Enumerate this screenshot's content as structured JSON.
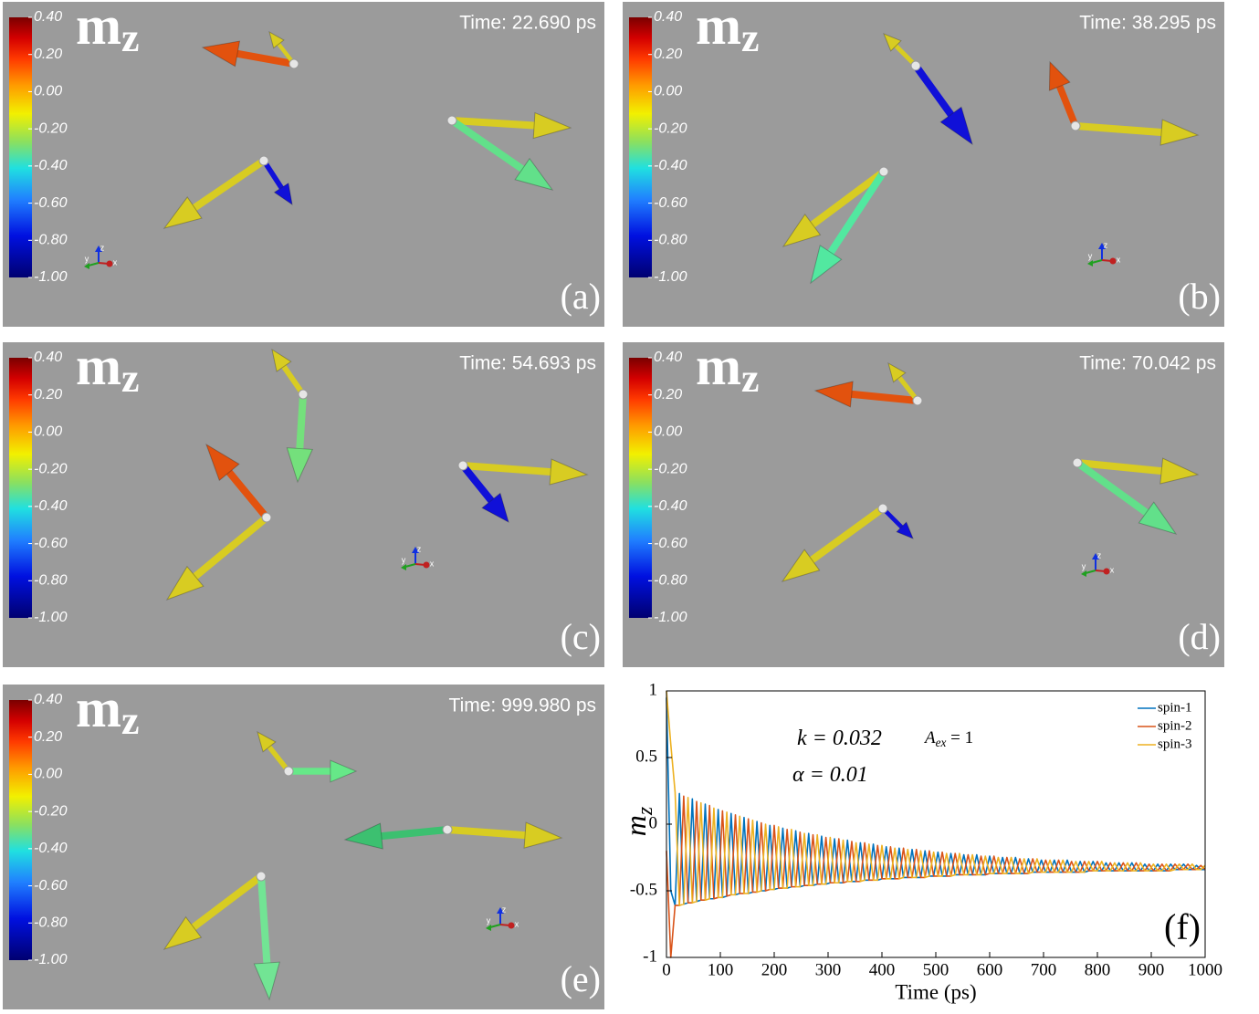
{
  "panels": [
    {
      "label": "(a)",
      "time": "Time: 22.690 ps",
      "quantity": "m",
      "quantity_sub": "z",
      "colorbar": {
        "lim": [
          -1.0,
          0.4
        ],
        "ticks": [
          {
            "value": 0.4,
            "label": "0.40"
          },
          {
            "value": 0.2,
            "label": "0.20"
          },
          {
            "value": 0,
            "label": "0.00"
          },
          {
            "value": -0.2,
            "label": "-0.20"
          },
          {
            "value": -0.4,
            "label": "-0.40"
          },
          {
            "value": -0.6,
            "label": "-0.60"
          },
          {
            "value": -0.8,
            "label": "-0.80"
          },
          {
            "value": -1.0,
            "label": "-1.00"
          }
        ]
      }
    },
    {
      "label": "(b)",
      "time": "Time: 38.295 ps",
      "quantity": "m",
      "quantity_sub": "z",
      "colorbar": {
        "lim": [
          -1.0,
          0.4
        ],
        "ticks": [
          {
            "value": 0.4,
            "label": "0.40"
          },
          {
            "value": 0.2,
            "label": "0.20"
          },
          {
            "value": 0,
            "label": "0.00"
          },
          {
            "value": -0.2,
            "label": "-0.20"
          },
          {
            "value": -0.4,
            "label": "-0.40"
          },
          {
            "value": -0.6,
            "label": "-0.60"
          },
          {
            "value": -0.8,
            "label": "-0.80"
          },
          {
            "value": -1.0,
            "label": "-1.00"
          }
        ]
      }
    },
    {
      "label": "(c)",
      "time": "Time: 54.693 ps",
      "quantity": "m",
      "quantity_sub": "z",
      "colorbar": {
        "lim": [
          -1.0,
          0.4
        ],
        "ticks": [
          {
            "value": 0.4,
            "label": "0.40"
          },
          {
            "value": 0.2,
            "label": "0.20"
          },
          {
            "value": 0,
            "label": "0.00"
          },
          {
            "value": -0.2,
            "label": "-0.20"
          },
          {
            "value": -0.4,
            "label": "-0.40"
          },
          {
            "value": -0.6,
            "label": "-0.60"
          },
          {
            "value": -0.8,
            "label": "-0.80"
          },
          {
            "value": -1.0,
            "label": "-1.00"
          }
        ]
      }
    },
    {
      "label": "(d)",
      "time": "Time: 70.042 ps",
      "quantity": "m",
      "quantity_sub": "z",
      "colorbar": {
        "lim": [
          -1.0,
          0.4
        ],
        "ticks": [
          {
            "value": 0.4,
            "label": "0.40"
          },
          {
            "value": 0.2,
            "label": "0.20"
          },
          {
            "value": 0,
            "label": "0.00"
          },
          {
            "value": -0.2,
            "label": "-0.20"
          },
          {
            "value": -0.4,
            "label": "-0.40"
          },
          {
            "value": -0.6,
            "label": "-0.60"
          },
          {
            "value": -0.8,
            "label": "-0.80"
          },
          {
            "value": -1.0,
            "label": "-1.00"
          }
        ]
      }
    },
    {
      "label": "(e)",
      "time": "Time: 999.980 ps",
      "quantity": "m",
      "quantity_sub": "z",
      "colorbar": {
        "lim": [
          -1.0,
          0.4
        ],
        "ticks": [
          {
            "value": 0.4,
            "label": "0.40"
          },
          {
            "value": 0.2,
            "label": "0.20"
          },
          {
            "value": 0,
            "label": "0.00"
          },
          {
            "value": -0.2,
            "label": "-0.20"
          },
          {
            "value": -0.4,
            "label": "-0.40"
          },
          {
            "value": -0.6,
            "label": "-0.60"
          },
          {
            "value": -0.8,
            "label": "-0.80"
          },
          {
            "value": -1.0,
            "label": "-1.00"
          }
        ]
      }
    }
  ],
  "triad_labels": [
    "y",
    "z",
    "x"
  ],
  "chart_data": {
    "type": "line",
    "panel_label": "(f)",
    "xlabel": "Time (ps)",
    "ylabel": "m",
    "ylabel_sub": "z",
    "annotations": [
      {
        "text": "k = 0.032"
      },
      {
        "text": "α = 0.01"
      },
      {
        "text": "A",
        "sub": "ex",
        "rest": " = 1"
      }
    ],
    "xlim": [
      0,
      1000
    ],
    "ylim": [
      -1,
      1
    ],
    "xticks": [
      0,
      100,
      200,
      300,
      400,
      500,
      600,
      700,
      800,
      900,
      1000
    ],
    "yticks": [
      1,
      0.5,
      0,
      -0.5,
      -1
    ],
    "x": [
      0,
      8,
      16,
      24,
      32,
      40,
      48,
      56,
      64,
      72,
      80,
      88,
      96,
      104,
      112,
      120,
      128,
      136,
      144,
      152,
      160,
      168,
      176,
      184,
      192,
      200,
      208,
      216,
      224,
      232,
      240,
      248,
      256,
      264,
      272,
      280,
      288,
      296,
      304,
      312,
      320,
      328,
      336,
      344,
      352,
      360,
      368,
      376,
      384,
      392,
      400,
      408,
      416,
      424,
      432,
      440,
      448,
      456,
      464,
      472,
      480,
      488,
      496,
      504,
      512,
      520,
      528,
      536,
      544,
      552,
      560,
      568,
      576,
      584,
      592,
      600,
      608,
      616,
      624,
      632,
      640,
      648,
      656,
      664,
      672,
      680,
      688,
      696,
      704,
      712,
      720,
      728,
      736,
      744,
      752,
      760,
      768,
      776,
      784,
      792,
      800,
      808,
      816,
      824,
      832,
      840,
      848,
      856,
      864,
      872,
      880,
      888,
      896,
      904,
      912,
      920,
      928,
      936,
      944,
      952,
      960,
      968,
      976,
      984,
      992,
      1000
    ],
    "series": [
      {
        "name": "spin-1",
        "color": "#0072bd",
        "values": [
          0.95,
          -0.5,
          -0.61,
          0.23,
          -0.6,
          -0.59,
          0.19,
          -0.58,
          -0.57,
          0.15,
          -0.56,
          -0.56,
          0.11,
          -0.55,
          -0.54,
          0.08,
          -0.53,
          -0.52,
          0.05,
          -0.52,
          -0.51,
          0.02,
          -0.5,
          -0.5,
          -0.01,
          -0.49,
          -0.48,
          -0.03,
          -0.48,
          -0.47,
          -0.05,
          -0.47,
          -0.46,
          -0.07,
          -0.46,
          -0.45,
          -0.09,
          -0.45,
          -0.44,
          -0.11,
          -0.44,
          -0.44,
          -0.12,
          -0.43,
          -0.43,
          -0.14,
          -0.42,
          -0.42,
          -0.15,
          -0.42,
          -0.41,
          -0.17,
          -0.41,
          -0.41,
          -0.18,
          -0.4,
          -0.4,
          -0.19,
          -0.4,
          -0.4,
          -0.2,
          -0.39,
          -0.39,
          -0.21,
          -0.39,
          -0.39,
          -0.22,
          -0.38,
          -0.38,
          -0.23,
          -0.38,
          -0.38,
          -0.23,
          -0.38,
          -0.38,
          -0.24,
          -0.37,
          -0.37,
          -0.25,
          -0.37,
          -0.37,
          -0.25,
          -0.37,
          -0.37,
          -0.26,
          -0.36,
          -0.36,
          -0.27,
          -0.36,
          -0.36,
          -0.27,
          -0.36,
          -0.36,
          -0.27,
          -0.36,
          -0.36,
          -0.28,
          -0.36,
          -0.35,
          -0.28,
          -0.35,
          -0.35,
          -0.29,
          -0.35,
          -0.35,
          -0.29,
          -0.35,
          -0.35,
          -0.29,
          -0.35,
          -0.35,
          -0.3,
          -0.35,
          -0.35,
          -0.3,
          -0.35,
          -0.35,
          -0.3,
          -0.34,
          -0.34,
          -0.3,
          -0.34,
          -0.34,
          -0.31,
          -0.34,
          -0.34
        ]
      },
      {
        "name": "spin-2",
        "color": "#d95319",
        "values": [
          -0.2,
          -1.0,
          -0.61,
          -0.61,
          0.21,
          -0.59,
          -0.59,
          0.17,
          -0.57,
          -0.57,
          0.14,
          -0.56,
          -0.55,
          0.1,
          -0.54,
          -0.53,
          0.07,
          -0.52,
          -0.52,
          0.04,
          -0.51,
          -0.51,
          0.01,
          -0.5,
          -0.49,
          -0.01,
          -0.48,
          -0.48,
          -0.04,
          -0.47,
          -0.47,
          -0.06,
          -0.46,
          -0.46,
          -0.08,
          -0.45,
          -0.45,
          -0.1,
          -0.44,
          -0.44,
          -0.11,
          -0.44,
          -0.43,
          -0.13,
          -0.43,
          -0.43,
          -0.14,
          -0.42,
          -0.42,
          -0.16,
          -0.41,
          -0.41,
          -0.17,
          -0.41,
          -0.41,
          -0.18,
          -0.4,
          -0.4,
          -0.19,
          -0.4,
          -0.4,
          -0.2,
          -0.39,
          -0.39,
          -0.21,
          -0.39,
          -0.39,
          -0.22,
          -0.38,
          -0.38,
          -0.23,
          -0.38,
          -0.38,
          -0.24,
          -0.38,
          -0.37,
          -0.24,
          -0.37,
          -0.37,
          -0.25,
          -0.37,
          -0.37,
          -0.26,
          -0.37,
          -0.37,
          -0.26,
          -0.36,
          -0.36,
          -0.27,
          -0.36,
          -0.36,
          -0.27,
          -0.36,
          -0.36,
          -0.28,
          -0.36,
          -0.36,
          -0.28,
          -0.35,
          -0.35,
          -0.28,
          -0.35,
          -0.35,
          -0.29,
          -0.35,
          -0.35,
          -0.29,
          -0.35,
          -0.35,
          -0.29,
          -0.35,
          -0.35,
          -0.3,
          -0.35,
          -0.35,
          -0.3,
          -0.35,
          -0.35,
          -0.3,
          -0.34,
          -0.34,
          -0.3,
          -0.34,
          -0.34,
          -0.31,
          -0.34
        ]
      },
      {
        "name": "spin-3",
        "color": "#edb120",
        "values": [
          1.0,
          0.6,
          0.24,
          -0.61,
          -0.6,
          0.2,
          -0.59,
          -0.58,
          0.16,
          -0.57,
          -0.56,
          0.12,
          -0.55,
          -0.55,
          0.09,
          -0.53,
          -0.53,
          0.06,
          -0.52,
          -0.52,
          0.03,
          -0.51,
          -0.5,
          0.0,
          -0.49,
          -0.49,
          -0.02,
          -0.48,
          -0.48,
          -0.04,
          -0.47,
          -0.47,
          -0.07,
          -0.46,
          -0.46,
          -0.08,
          -0.45,
          -0.45,
          -0.1,
          -0.44,
          -0.44,
          -0.12,
          -0.43,
          -0.43,
          -0.14,
          -0.43,
          -0.42,
          -0.15,
          -0.42,
          -0.42,
          -0.16,
          -0.41,
          -0.41,
          -0.18,
          -0.41,
          -0.4,
          -0.19,
          -0.4,
          -0.4,
          -0.2,
          -0.4,
          -0.39,
          -0.21,
          -0.39,
          -0.39,
          -0.22,
          -0.39,
          -0.38,
          -0.22,
          -0.38,
          -0.38,
          -0.23,
          -0.38,
          -0.38,
          -0.24,
          -0.37,
          -0.37,
          -0.25,
          -0.37,
          -0.37,
          -0.25,
          -0.37,
          -0.37,
          -0.26,
          -0.37,
          -0.36,
          -0.26,
          -0.36,
          -0.36,
          -0.27,
          -0.36,
          -0.36,
          -0.27,
          -0.36,
          -0.36,
          -0.28,
          -0.36,
          -0.36,
          -0.28,
          -0.35,
          -0.35,
          -0.28,
          -0.35,
          -0.35,
          -0.29,
          -0.35,
          -0.35,
          -0.29,
          -0.35,
          -0.35,
          -0.29,
          -0.35,
          -0.35,
          -0.3,
          -0.35,
          -0.35,
          -0.3,
          -0.35,
          -0.34,
          -0.3,
          -0.34,
          -0.34,
          -0.3,
          -0.34,
          -0.34,
          -0.31
        ]
      }
    ]
  }
}
